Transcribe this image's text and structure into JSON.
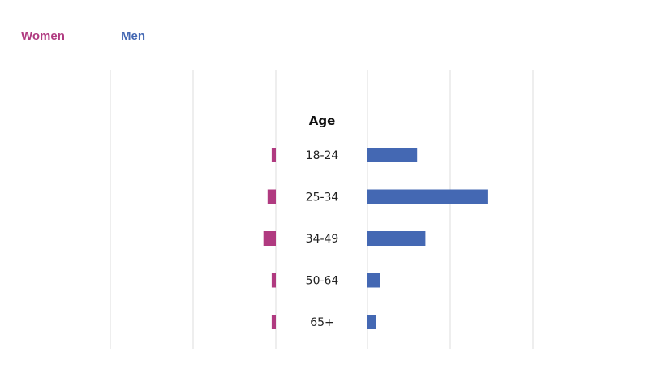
{
  "legend": {
    "women_label": "Women",
    "men_label": "Men"
  },
  "colors": {
    "women": "#b03a80",
    "men": "#4468b3",
    "gridline": "#dcdcdc"
  },
  "chart_data": {
    "type": "bar",
    "orientation": "horizontal-butterfly",
    "category_title": "Age",
    "categories": [
      "18-24",
      "25-34",
      "34-49",
      "50-64",
      "65+"
    ],
    "series": [
      {
        "name": "Women",
        "values": [
          0.5,
          1.0,
          1.5,
          0.5,
          0.5
        ]
      },
      {
        "name": "Men",
        "values": [
          6.0,
          14.5,
          7.0,
          1.5,
          1.0
        ]
      }
    ],
    "xlim": [
      0,
      20
    ],
    "grid": true,
    "legend_position": "top-left"
  }
}
